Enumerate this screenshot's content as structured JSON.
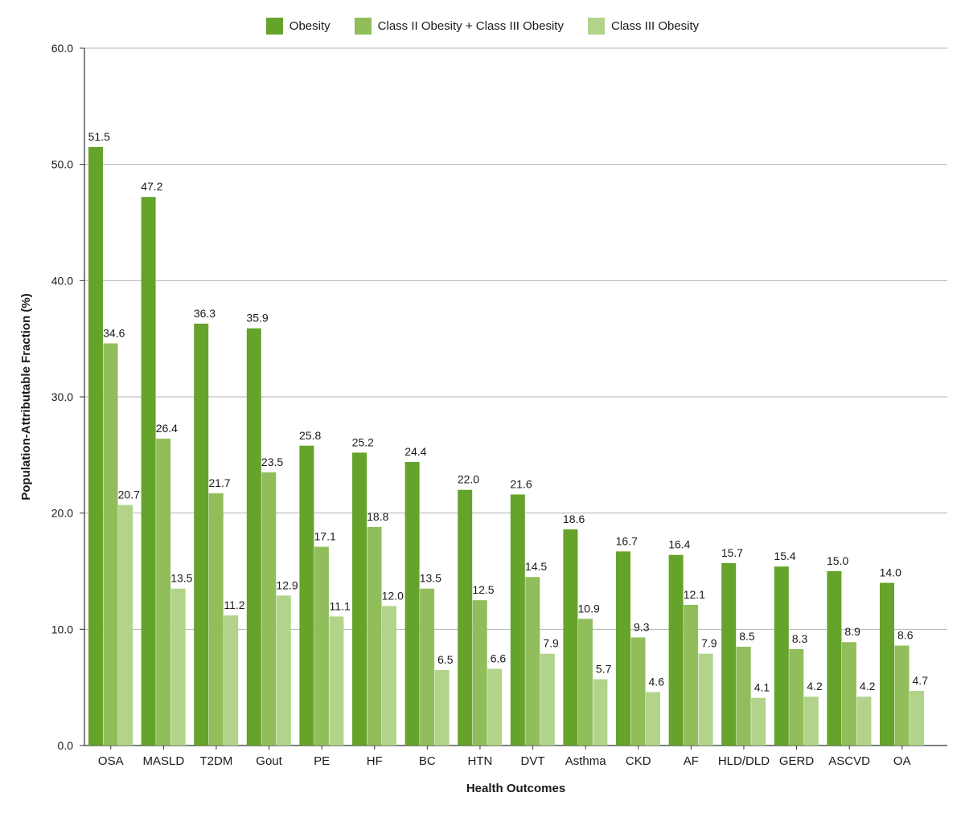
{
  "chart_data": {
    "type": "bar",
    "xlabel": "Health Outcomes",
    "ylabel": "Population-Attributable Fraction (%)",
    "ylim": [
      0,
      60
    ],
    "yticks": [
      "0.0",
      "10.0",
      "20.0",
      "30.0",
      "40.0",
      "50.0",
      "60.0"
    ],
    "grid": true,
    "legend_position": "top-center",
    "categories": [
      "OSA",
      "MASLD",
      "T2DM",
      "Gout",
      "PE",
      "HF",
      "BC",
      "HTN",
      "DVT",
      "Asthma",
      "CKD",
      "AF",
      "HLD/DLD",
      "GERD",
      "ASCVD",
      "OA"
    ],
    "series": [
      {
        "name": "Obesity",
        "color": "#66a32a",
        "values": [
          51.5,
          47.2,
          36.3,
          35.9,
          25.8,
          25.2,
          24.4,
          22.0,
          21.6,
          18.6,
          16.7,
          16.4,
          15.7,
          15.4,
          15.0,
          14.0
        ]
      },
      {
        "name": "Class II Obesity + Class III Obesity",
        "color": "#91bd5b",
        "values": [
          34.6,
          26.4,
          21.7,
          23.5,
          17.1,
          18.8,
          13.5,
          12.5,
          14.5,
          10.9,
          9.3,
          12.1,
          8.5,
          8.3,
          8.9,
          8.6
        ]
      },
      {
        "name": "Class III Obesity",
        "color": "#b1d48a",
        "values": [
          20.7,
          13.5,
          11.2,
          12.9,
          11.1,
          12.0,
          6.5,
          6.6,
          7.9,
          5.7,
          4.6,
          7.9,
          4.1,
          4.2,
          4.2,
          4.7
        ]
      }
    ]
  }
}
